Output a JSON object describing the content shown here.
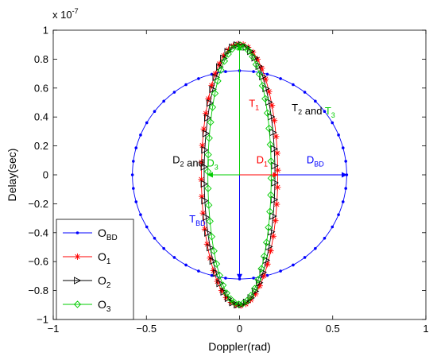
{
  "chart_data": {
    "type": "line",
    "title": "",
    "xlabel": "Doppler(rad)",
    "ylabel": "Delay(sec)",
    "y_exponent_label": "x 10",
    "y_exponent_power": "-7",
    "xlim": [
      -1,
      1
    ],
    "ylim": [
      -1,
      1
    ],
    "y_scale_factor": 1e-07,
    "xticks": [
      -1,
      -0.5,
      0,
      0.5,
      1
    ],
    "xtick_labels": [
      "−1",
      "−0.5",
      "0",
      "0.5",
      "1"
    ],
    "yticks": [
      -1,
      -0.8,
      -0.6,
      -0.4,
      -0.2,
      0,
      0.2,
      0.4,
      0.6,
      0.8,
      1
    ],
    "ytick_labels": [
      "−1",
      "−0.8",
      "−0.6",
      "−0.4",
      "−0.2",
      "0",
      "0.2",
      "0.4",
      "0.6",
      "0.8",
      "1"
    ],
    "grid": false,
    "legend_position": "bottom-left",
    "series": [
      {
        "name": "O",
        "sub": "BD",
        "color": "#0000ff",
        "marker": "dot",
        "rx": 0.575,
        "ry": 0.72,
        "npts": 48
      },
      {
        "name": "O",
        "sub": "1",
        "color": "#ff0000",
        "marker": "star",
        "rx": 0.205,
        "ry": 0.905,
        "npts": 48
      },
      {
        "name": "O",
        "sub": "2",
        "color": "#000000",
        "marker": "triangle-right",
        "rx": 0.19,
        "ry": 0.9,
        "npts": 48
      },
      {
        "name": "O",
        "sub": "3",
        "color": "#00cc00",
        "marker": "diamond",
        "rx": 0.17,
        "ry": 0.895,
        "npts": 48
      }
    ],
    "arrows": [
      {
        "name": "D_BD",
        "from": [
          0,
          0
        ],
        "to": [
          0.575,
          0
        ],
        "color": "#0000ff"
      },
      {
        "name": "T_BD",
        "from": [
          0,
          0
        ],
        "to": [
          0,
          -0.72
        ],
        "color": "#0000ff"
      },
      {
        "name": "D_1",
        "from": [
          0,
          0
        ],
        "to": [
          0.205,
          0
        ],
        "color": "#ff0000"
      },
      {
        "name": "D_3",
        "from": [
          0,
          0
        ],
        "to": [
          -0.17,
          0
        ],
        "color": "#00cc00"
      },
      {
        "name": "T_3",
        "from": [
          0,
          0
        ],
        "to": [
          0,
          0.895
        ],
        "color": "#00cc00"
      }
    ],
    "annotations": [
      {
        "parts": [
          [
            "D",
            "BD",
            "#0000ff"
          ]
        ],
        "x": 0.36,
        "y": 0.08
      },
      {
        "parts": [
          [
            "D",
            "1",
            "#ff0000"
          ]
        ],
        "x": 0.09,
        "y": 0.08
      },
      {
        "parts": [
          [
            "D",
            "2",
            "#000000"
          ],
          [
            " and ",
            "",
            "#000000"
          ],
          [
            "D",
            "3",
            "#00cc00"
          ]
        ],
        "x": -0.36,
        "y": 0.08
      },
      {
        "parts": [
          [
            "T",
            "1",
            "#ff0000"
          ]
        ],
        "x": 0.05,
        "y": 0.47
      },
      {
        "parts": [
          [
            "T",
            "2",
            "#000000"
          ],
          [
            " and ",
            "",
            "#000000"
          ],
          [
            "T",
            "3",
            "#00cc00"
          ]
        ],
        "x": 0.28,
        "y": 0.44
      },
      {
        "parts": [
          [
            "T",
            "BD",
            "#0000ff"
          ]
        ],
        "x": -0.27,
        "y": -0.33
      }
    ]
  }
}
